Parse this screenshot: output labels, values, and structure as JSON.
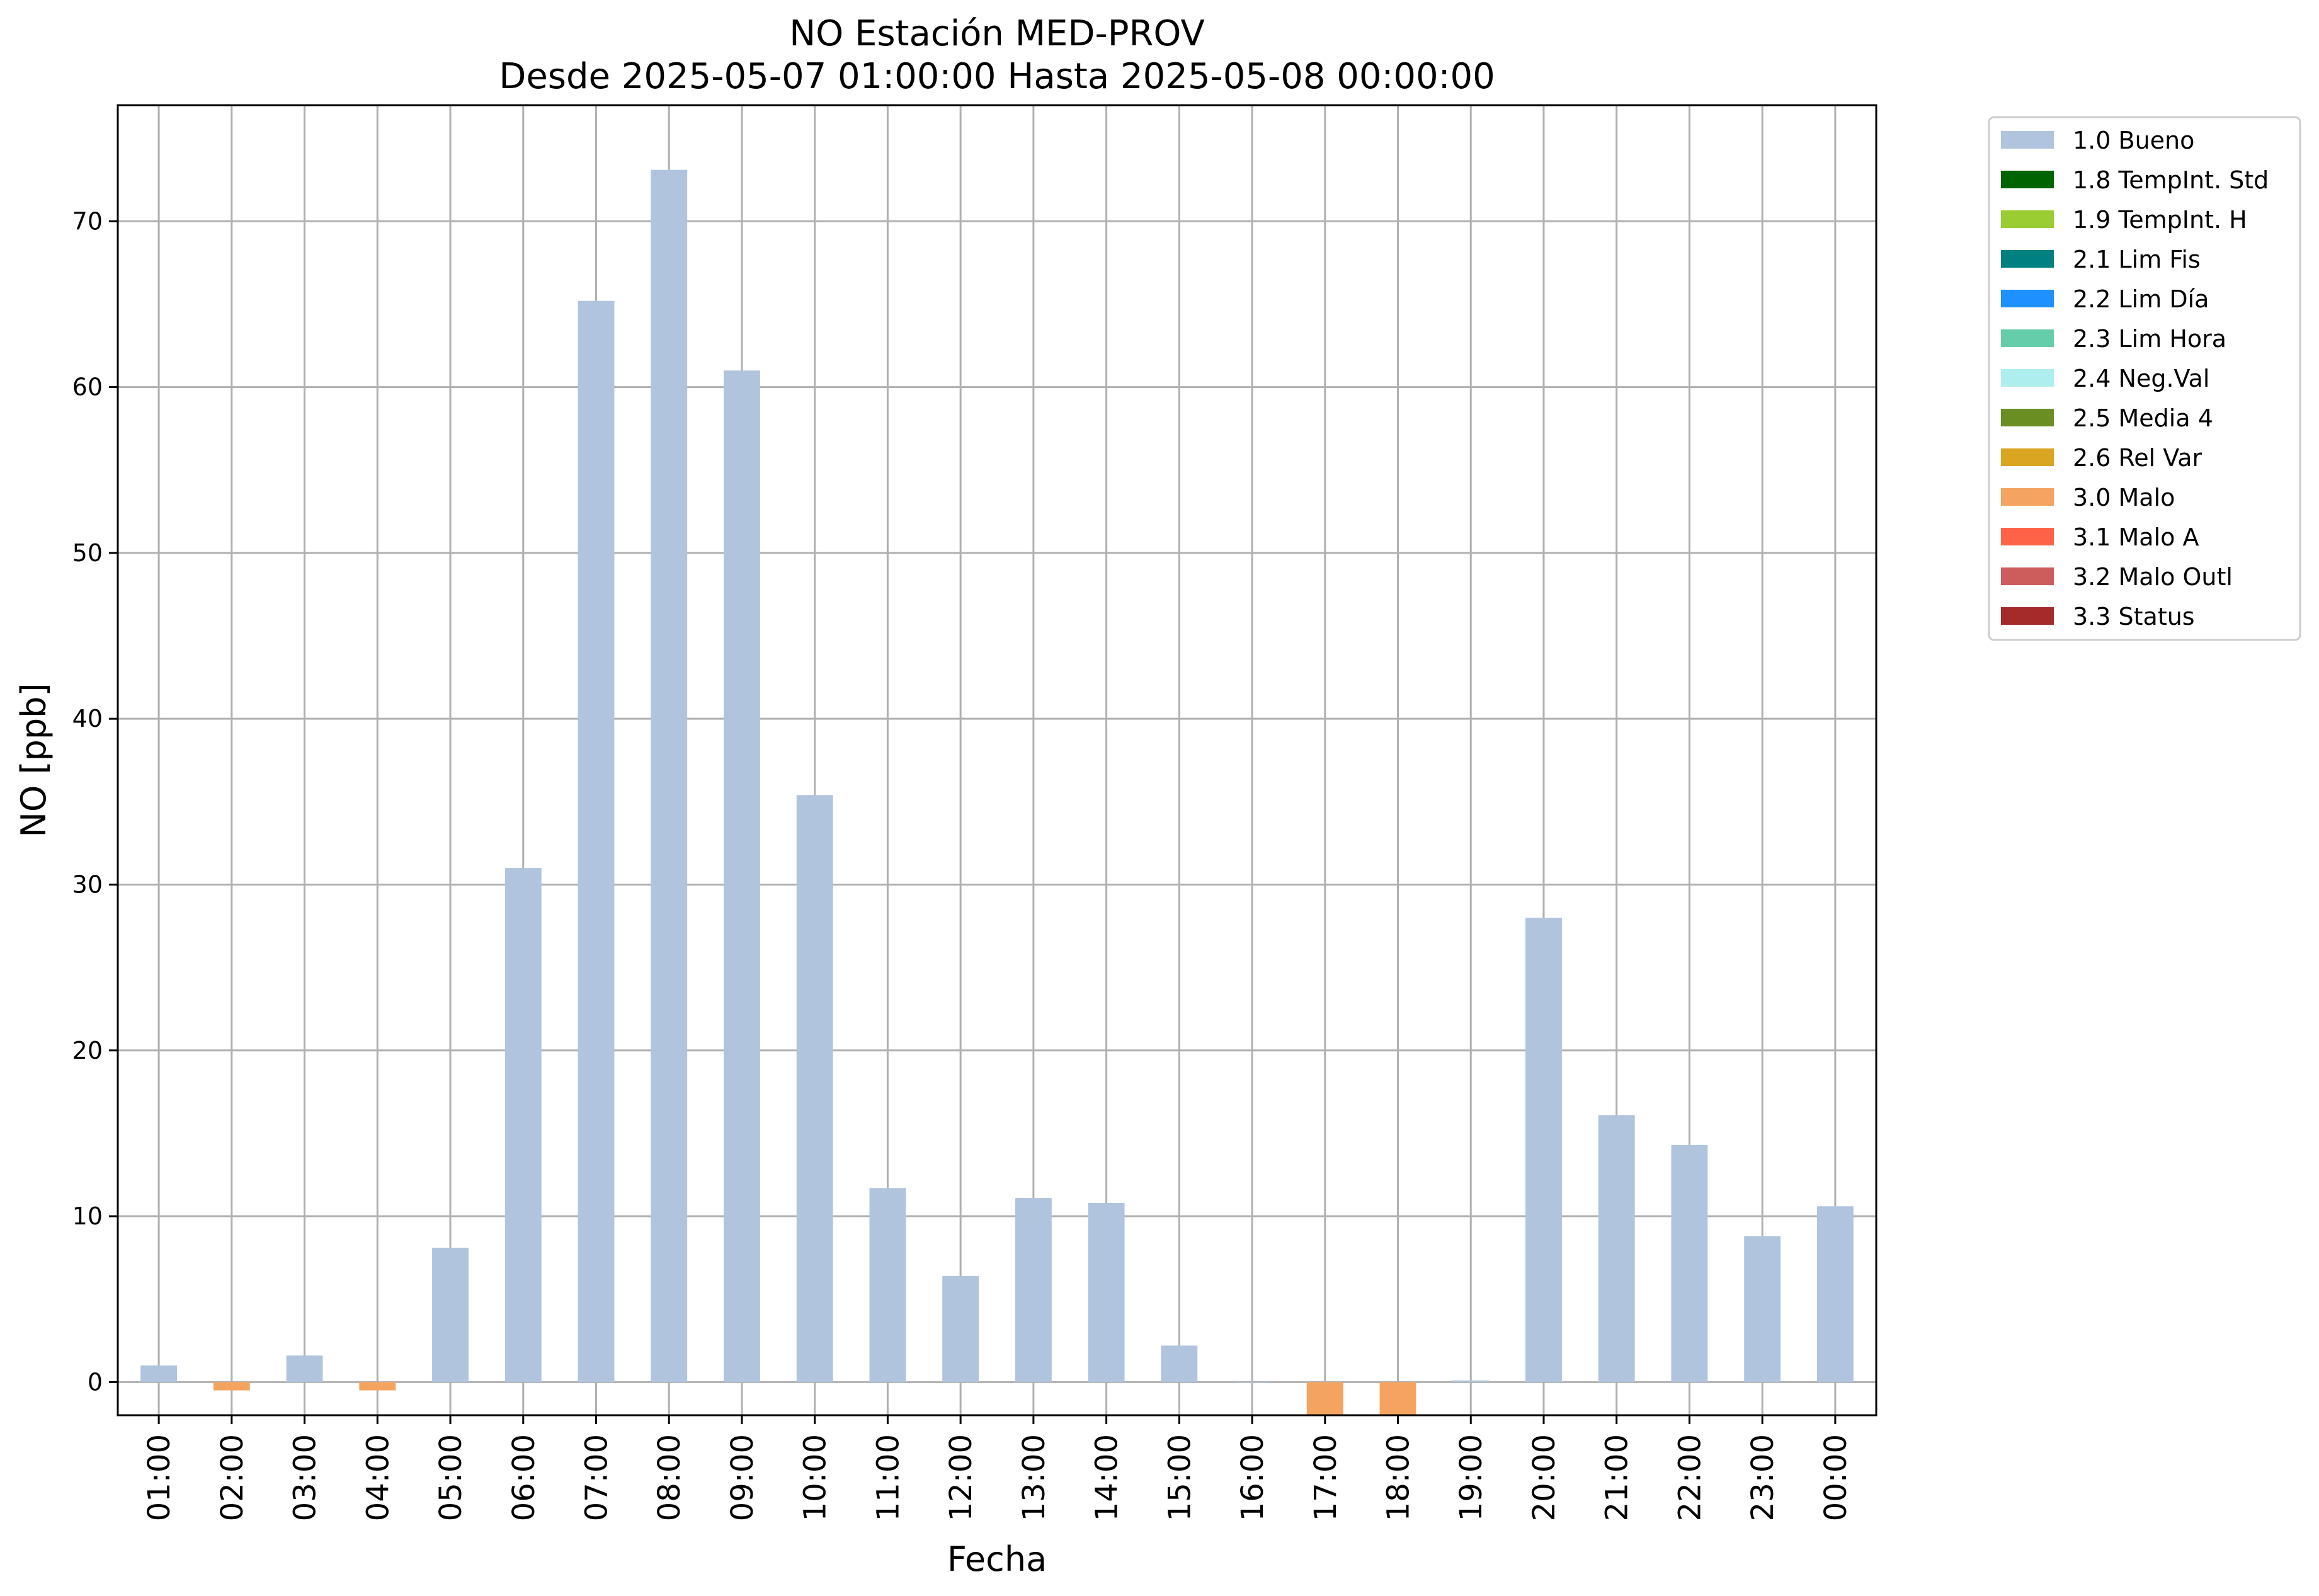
{
  "chart_data": {
    "type": "bar",
    "title": "NO Estación MED-PROV",
    "subtitle": "Desde 2025-05-07 01:00:00 Hasta 2025-05-08 00:00:00",
    "xlabel": "Fecha",
    "ylabel": "NO [ppb]",
    "ylim": [
      -2,
      77
    ],
    "yticks": [
      0,
      10,
      20,
      30,
      40,
      50,
      60,
      70
    ],
    "grid": true,
    "legend_position": "outside-top-right",
    "categories": [
      "01:00",
      "02:00",
      "03:00",
      "04:00",
      "05:00",
      "06:00",
      "07:00",
      "08:00",
      "09:00",
      "10:00",
      "11:00",
      "12:00",
      "13:00",
      "14:00",
      "15:00",
      "16:00",
      "17:00",
      "18:00",
      "19:00",
      "20:00",
      "21:00",
      "22:00",
      "23:00",
      "00:00"
    ],
    "values": [
      1.0,
      -0.5,
      1.6,
      -0.5,
      8.1,
      31.0,
      65.2,
      73.1,
      61.0,
      35.4,
      11.7,
      6.4,
      11.1,
      10.8,
      2.2,
      0.0,
      -2.0,
      -2.0,
      0.1,
      28.0,
      16.1,
      14.3,
      8.8,
      10.6
    ],
    "flags": [
      "1.0",
      "3.0",
      "1.0",
      "3.0",
      "1.0",
      "1.0",
      "1.0",
      "1.0",
      "1.0",
      "1.0",
      "1.0",
      "1.0",
      "1.0",
      "1.0",
      "1.0",
      "1.0",
      "3.0",
      "3.0",
      "1.0",
      "1.0",
      "1.0",
      "1.0",
      "1.0",
      "1.0"
    ],
    "legend": [
      {
        "code": "1.0",
        "label": "1.0 Bueno",
        "color": "#b0c4de"
      },
      {
        "code": "1.8",
        "label": "1.8 TempInt. Std",
        "color": "#006400"
      },
      {
        "code": "1.9",
        "label": "1.9 TempInt. H",
        "color": "#9acd32"
      },
      {
        "code": "2.1",
        "label": "2.1 Lim Fis",
        "color": "#008080"
      },
      {
        "code": "2.2",
        "label": "2.2 Lim Día",
        "color": "#1e90ff"
      },
      {
        "code": "2.3",
        "label": "2.3 Lim Hora",
        "color": "#66cdaa"
      },
      {
        "code": "2.4",
        "label": "2.4 Neg.Val",
        "color": "#afeeee"
      },
      {
        "code": "2.5",
        "label": "2.5 Media 4",
        "color": "#6b8e23"
      },
      {
        "code": "2.6",
        "label": "2.6 Rel Var",
        "color": "#daa520"
      },
      {
        "code": "3.0",
        "label": "3.0 Malo",
        "color": "#f4a460"
      },
      {
        "code": "3.1",
        "label": "3.1 Malo A",
        "color": "#ff6347"
      },
      {
        "code": "3.2",
        "label": "3.2 Malo Outl",
        "color": "#cd5c5c"
      },
      {
        "code": "3.3",
        "label": "3.3 Status",
        "color": "#a52a2a"
      }
    ]
  }
}
